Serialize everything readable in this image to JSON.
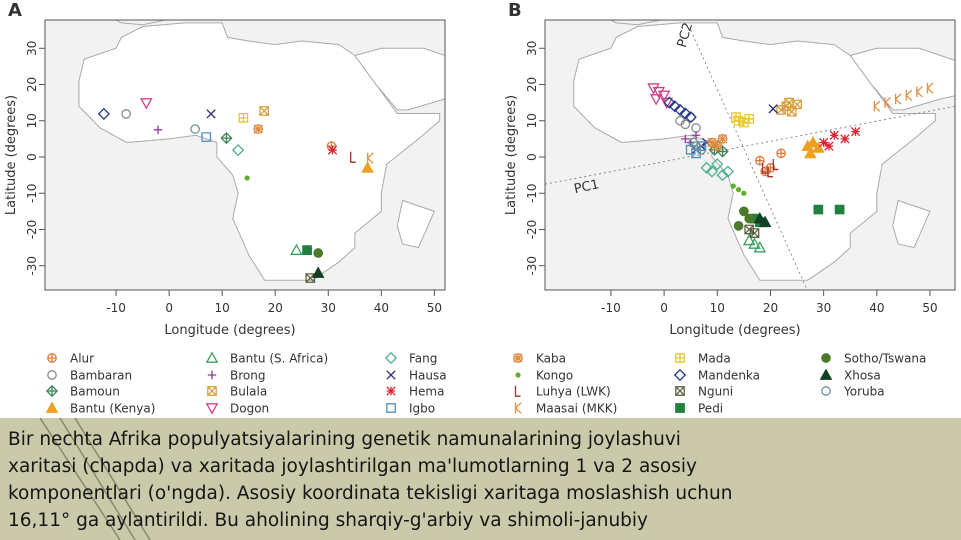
{
  "chart_data": [
    {
      "type": "scatter",
      "panel_label": "A",
      "xlabel": "Longitude (degrees)",
      "ylabel": "Latitude (degrees)",
      "xlim": [
        -23.4,
        52
      ],
      "ylim": [
        -36.7,
        37.8
      ],
      "xticks": [
        -10,
        0,
        10,
        20,
        30,
        40,
        50
      ],
      "yticks": [
        -30,
        -20,
        -10,
        0,
        10,
        20,
        30
      ],
      "series": [
        {
          "name": "Alur",
          "color": "#e07b39",
          "marker": "circle-plus",
          "x": [
            30.6
          ],
          "y": [
            3.0
          ]
        },
        {
          "name": "Bambaran",
          "color": "#8a8a8a",
          "marker": "circle",
          "x": [
            -8.1
          ],
          "y": [
            11.9
          ]
        },
        {
          "name": "Bamoun",
          "color": "#3a8a5a",
          "marker": "diamond-plus",
          "x": [
            10.8
          ],
          "y": [
            5.2
          ]
        },
        {
          "name": "Bantu (Kenya)",
          "color": "#f0a020",
          "marker": "triangle-filled",
          "x": [
            37.4
          ],
          "y": [
            -3.0
          ]
        },
        {
          "name": "Bantu (S. Africa)",
          "color": "#3aa060",
          "marker": "triangle",
          "x": [
            24.0
          ],
          "y": [
            -25.7
          ]
        },
        {
          "name": "Brong",
          "color": "#8a3a9a",
          "marker": "plus",
          "x": [
            -2.1
          ],
          "y": [
            7.5
          ]
        },
        {
          "name": "Bulala",
          "color": "#d9a040",
          "marker": "square-x",
          "x": [
            17.9
          ],
          "y": [
            12.7
          ]
        },
        {
          "name": "Dogon",
          "color": "#d0408a",
          "marker": "triangle-down",
          "x": [
            -4.3
          ],
          "y": [
            14.9
          ]
        },
        {
          "name": "Fang",
          "color": "#50b090",
          "marker": "diamond",
          "x": [
            13.0
          ],
          "y": [
            1.9
          ]
        },
        {
          "name": "Hausa",
          "color": "#2a2a7a",
          "marker": "x",
          "x": [
            7.9
          ],
          "y": [
            11.9
          ]
        },
        {
          "name": "Hema",
          "color": "#e02030",
          "marker": "star",
          "x": [
            30.8
          ],
          "y": [
            1.9
          ]
        },
        {
          "name": "Igbo",
          "color": "#5090c0",
          "marker": "square",
          "x": [
            7.0
          ],
          "y": [
            5.5
          ]
        },
        {
          "name": "Kaba",
          "color": "#e08a40",
          "marker": "circle-star",
          "x": [
            16.8
          ],
          "y": [
            7.7
          ]
        },
        {
          "name": "Kongo",
          "color": "#60b030",
          "marker": "dot-small",
          "x": [
            14.7
          ],
          "y": [
            -5.8
          ]
        },
        {
          "name": "Luhya (LWK)",
          "color": "#a03030",
          "marker": "L",
          "x": [
            34.7
          ],
          "y": [
            0.0
          ]
        },
        {
          "name": "Maasai (MKK)",
          "color": "#e09040",
          "marker": "K",
          "x": [
            37.9
          ],
          "y": [
            -0.3
          ]
        },
        {
          "name": "Mada",
          "color": "#e8c830",
          "marker": "square-plus",
          "x": [
            14.0
          ],
          "y": [
            10.8
          ]
        },
        {
          "name": "Mandenka",
          "color": "#2a3a8a",
          "marker": "diamond",
          "x": [
            -12.3
          ],
          "y": [
            11.9
          ]
        },
        {
          "name": "Nguni",
          "color": "#606040",
          "marker": "square-x",
          "x": [
            26.6
          ],
          "y": [
            -33.4
          ]
        },
        {
          "name": "Pedi",
          "color": "#208040",
          "marker": "square-filled",
          "x": [
            26.0
          ],
          "y": [
            -25.7
          ]
        },
        {
          "name": "Sotho/Tswana",
          "color": "#4a7a2a",
          "marker": "dot",
          "x": [
            28.1
          ],
          "y": [
            -26.5
          ]
        },
        {
          "name": "Xhosa",
          "color": "#104020",
          "marker": "triangle-filled",
          "x": [
            28.1
          ],
          "y": [
            -32.0
          ]
        },
        {
          "name": "Yoruba",
          "color": "#7090a0",
          "marker": "circle",
          "x": [
            4.9
          ],
          "y": [
            7.7
          ]
        }
      ]
    },
    {
      "type": "scatter",
      "panel_label": "B",
      "xlabel": "Longitude (degrees)",
      "ylabel": "Latitude (degrees)",
      "xlim": [
        -22.4,
        54.7
      ],
      "ylim": [
        -36.7,
        37.8
      ],
      "xticks": [
        -10,
        0,
        10,
        20,
        30,
        40,
        50
      ],
      "yticks": [
        -30,
        -20,
        -10,
        0,
        10,
        20,
        30
      ],
      "annotations": [
        "PC1",
        "PC2"
      ],
      "series": [
        {
          "x": [
            18,
            20,
            22,
            19
          ],
          "y": [
            -1,
            -3,
            1,
            -4
          ]
        },
        {
          "x": [
            4,
            5,
            6,
            3
          ],
          "y": [
            9,
            11,
            8,
            10
          ]
        },
        {
          "x": [
            10,
            11,
            9.5
          ],
          "y": [
            3,
            1.5,
            2
          ]
        },
        {
          "x": [
            27,
            28,
            29,
            27.5
          ],
          "y": [
            3,
            4,
            2.5,
            1
          ]
        },
        {
          "x": [
            17,
            18,
            16
          ],
          "y": [
            -24,
            -25,
            -23
          ]
        },
        {
          "x": [
            4,
            5,
            6
          ],
          "y": [
            5,
            4,
            6
          ]
        },
        {
          "x": [
            22,
            23,
            24,
            25,
            23.5
          ],
          "y": [
            13,
            14,
            12.5,
            14.5,
            15
          ]
        },
        {
          "x": [
            -2,
            -1,
            0,
            -1.5,
            0.5
          ],
          "y": [
            19,
            18,
            17,
            16,
            15
          ]
        },
        {
          "x": [
            8,
            9,
            10,
            11,
            12
          ],
          "y": [
            -3,
            -4,
            -2,
            -5,
            -4
          ]
        },
        {
          "x": [
            20.5,
            7,
            8,
            6
          ],
          "y": [
            13.3,
            3,
            4,
            2
          ]
        },
        {
          "x": [
            30,
            32,
            34,
            36,
            31
          ],
          "y": [
            4,
            6,
            5,
            7,
            3
          ]
        },
        {
          "x": [
            5,
            6,
            7
          ],
          "y": [
            2,
            1,
            3
          ]
        },
        {
          "x": [
            9,
            10,
            11
          ],
          "y": [
            4,
            3,
            5
          ]
        },
        {
          "x": [
            13,
            14,
            15
          ],
          "y": [
            -8,
            -9,
            -10
          ]
        },
        {
          "x": [
            19,
            20,
            21
          ],
          "y": [
            -3,
            -4,
            -2
          ]
        },
        {
          "x": [
            40,
            42,
            44,
            46,
            48,
            50
          ],
          "y": [
            14,
            15,
            16,
            17,
            18,
            19
          ]
        },
        {
          "x": [
            14,
            15,
            13.5,
            16
          ],
          "y": [
            10,
            9.5,
            11,
            10.5
          ]
        },
        {
          "x": [
            1,
            2,
            3,
            4,
            5
          ],
          "y": [
            15,
            14,
            13,
            12,
            11
          ]
        },
        {
          "x": [
            16,
            17
          ],
          "y": [
            -20,
            -21
          ]
        },
        {
          "x": [
            29,
            33,
            17,
            18
          ],
          "y": [
            -14.5,
            -14.5,
            -17,
            -18
          ]
        },
        {
          "x": [
            15,
            16,
            14
          ],
          "y": [
            -15,
            -17,
            -19
          ]
        },
        {
          "x": [
            18,
            19
          ],
          "y": [
            -17,
            -18
          ]
        },
        {
          "x": [
            6,
            7,
            5.5
          ],
          "y": [
            3,
            2,
            4
          ]
        }
      ]
    }
  ],
  "caption": {
    "lines": [
      "Bir nechta Afrika populyatsiyalarining genetik namunalarining joylashuvi",
      "xaritasi (chapda) va xaritada joylashtirilgan ma'lumotlarning 1 va 2 asosiy",
      "komponentlari (o'ngda). Asosiy koordinata tekisligi xaritaga moslashish uchun",
      "16,11° ga aylantirildi. Bu aholining sharqiy-g'arbiy va shimoli-janubiy"
    ]
  }
}
